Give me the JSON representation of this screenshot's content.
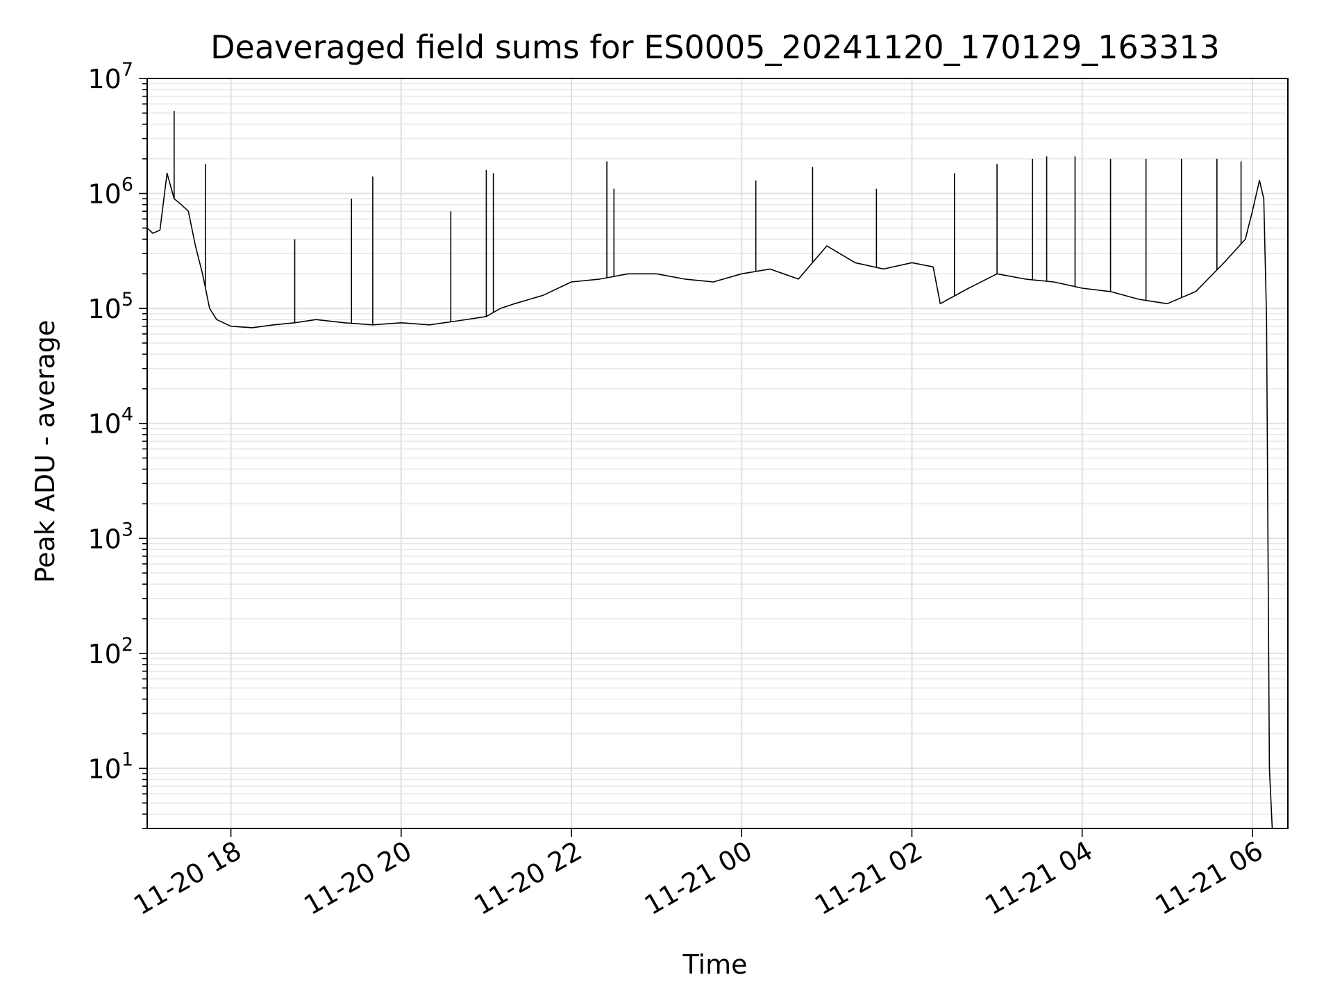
{
  "chart_data": {
    "type": "line",
    "title": "Deaveraged field sums for ES0005_20241120_170129_163313",
    "xlabel": "Time",
    "ylabel": "Peak ADU - average",
    "yscale": "log",
    "xlim": [
      "2024-11-20 17:01",
      "2024-11-21 06:25"
    ],
    "ylim": [
      3,
      10000000
    ],
    "x_ticks": [
      "11-20 18",
      "11-20 20",
      "11-20 22",
      "11-21 00",
      "11-21 02",
      "11-21 04",
      "11-21 06"
    ],
    "y_ticks": [
      {
        "base": "10",
        "exp": "1"
      },
      {
        "base": "10",
        "exp": "2"
      },
      {
        "base": "10",
        "exp": "3"
      },
      {
        "base": "10",
        "exp": "4"
      },
      {
        "base": "10",
        "exp": "5"
      },
      {
        "base": "10",
        "exp": "6"
      },
      {
        "base": "10",
        "exp": "7"
      }
    ],
    "grid": true,
    "line_color": "#000000",
    "series": [
      {
        "x": [
          "2024-11-20 17:01",
          "2024-11-20 17:05",
          "2024-11-20 17:10",
          "2024-11-20 17:15",
          "2024-11-20 17:20",
          "2024-11-20 17:25",
          "2024-11-20 17:30",
          "2024-11-20 17:35",
          "2024-11-20 17:40",
          "2024-11-20 17:45",
          "2024-11-20 17:50",
          "2024-11-20 18:00",
          "2024-11-20 18:15",
          "2024-11-20 18:30",
          "2024-11-20 18:45",
          "2024-11-20 19:00",
          "2024-11-20 19:20",
          "2024-11-20 19:40",
          "2024-11-20 20:00",
          "2024-11-20 20:20",
          "2024-11-20 20:40",
          "2024-11-20 21:00",
          "2024-11-20 21:10",
          "2024-11-20 21:20",
          "2024-11-20 21:40",
          "2024-11-20 22:00",
          "2024-11-20 22:20",
          "2024-11-20 22:40",
          "2024-11-20 23:00",
          "2024-11-20 23:20",
          "2024-11-20 23:40",
          "2024-11-21 00:00",
          "2024-11-21 00:20",
          "2024-11-21 00:40",
          "2024-11-21 01:00",
          "2024-11-21 01:20",
          "2024-11-21 01:40",
          "2024-11-21 02:00",
          "2024-11-21 02:15",
          "2024-11-21 02:20",
          "2024-11-21 02:40",
          "2024-11-21 03:00",
          "2024-11-21 03:20",
          "2024-11-21 03:40",
          "2024-11-21 04:00",
          "2024-11-21 04:20",
          "2024-11-21 04:40",
          "2024-11-21 05:00",
          "2024-11-21 05:20",
          "2024-11-21 05:40",
          "2024-11-21 05:55",
          "2024-11-21 06:00",
          "2024-11-21 06:05",
          "2024-11-21 06:08",
          "2024-11-21 06:10",
          "2024-11-21 06:12",
          "2024-11-21 06:14"
        ],
        "y": [
          500000,
          450000,
          480000,
          1500000,
          900000,
          800000,
          700000,
          350000,
          200000,
          100000,
          80000,
          70000,
          68000,
          72000,
          75000,
          80000,
          75000,
          72000,
          75000,
          72000,
          78000,
          85000,
          100000,
          110000,
          130000,
          170000,
          180000,
          200000,
          200000,
          180000,
          170000,
          200000,
          220000,
          180000,
          350000,
          250000,
          220000,
          250000,
          230000,
          110000,
          150000,
          200000,
          180000,
          170000,
          150000,
          140000,
          120000,
          110000,
          140000,
          250000,
          400000,
          700000,
          1300000,
          900000,
          80000,
          10,
          3
        ]
      }
    ],
    "spikes": [
      {
        "x": "2024-11-20 17:20",
        "y": 5200000
      },
      {
        "x": "2024-11-20 17:42",
        "y": 1800000
      },
      {
        "x": "2024-11-20 18:45",
        "y": 400000
      },
      {
        "x": "2024-11-20 19:25",
        "y": 900000
      },
      {
        "x": "2024-11-20 19:40",
        "y": 1400000
      },
      {
        "x": "2024-11-20 20:35",
        "y": 700000
      },
      {
        "x": "2024-11-20 21:00",
        "y": 1600000
      },
      {
        "x": "2024-11-20 21:05",
        "y": 1500000
      },
      {
        "x": "2024-11-20 22:25",
        "y": 1900000
      },
      {
        "x": "2024-11-20 22:30",
        "y": 1100000
      },
      {
        "x": "2024-11-21 00:10",
        "y": 1300000
      },
      {
        "x": "2024-11-21 00:50",
        "y": 1700000
      },
      {
        "x": "2024-11-21 01:35",
        "y": 1100000
      },
      {
        "x": "2024-11-21 02:30",
        "y": 1500000
      },
      {
        "x": "2024-11-21 03:00",
        "y": 1800000
      },
      {
        "x": "2024-11-21 03:25",
        "y": 2000000
      },
      {
        "x": "2024-11-21 03:35",
        "y": 2100000
      },
      {
        "x": "2024-11-21 03:55",
        "y": 2100000
      },
      {
        "x": "2024-11-21 04:20",
        "y": 2000000
      },
      {
        "x": "2024-11-21 04:45",
        "y": 2000000
      },
      {
        "x": "2024-11-21 05:10",
        "y": 2000000
      },
      {
        "x": "2024-11-21 05:35",
        "y": 2000000
      },
      {
        "x": "2024-11-21 05:52",
        "y": 1900000
      }
    ]
  }
}
